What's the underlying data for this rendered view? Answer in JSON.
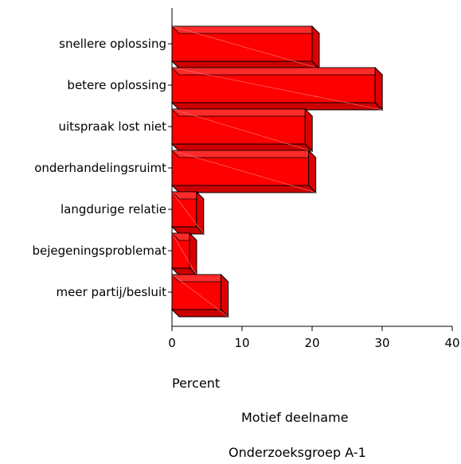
{
  "chart_data": {
    "type": "bar",
    "orientation": "horizontal",
    "style": "3d",
    "categories": [
      "snellere oplossing",
      "betere oplossing",
      "uitspraak lost niet",
      "onderhandelingsruimt",
      "langdurige relatie",
      "bejegeningsproblemat",
      "meer partij/besluit"
    ],
    "values": [
      20,
      29,
      19,
      19.5,
      3.5,
      2.5,
      7
    ],
    "xlabel": "Percent",
    "xlim": [
      0,
      40
    ],
    "xticks": [
      0,
      10,
      20,
      30,
      40
    ],
    "grid": false,
    "bar_color": "#ff0000",
    "title": "Motief deelname",
    "subtitle": "Onderzoeksgroep A-1"
  }
}
